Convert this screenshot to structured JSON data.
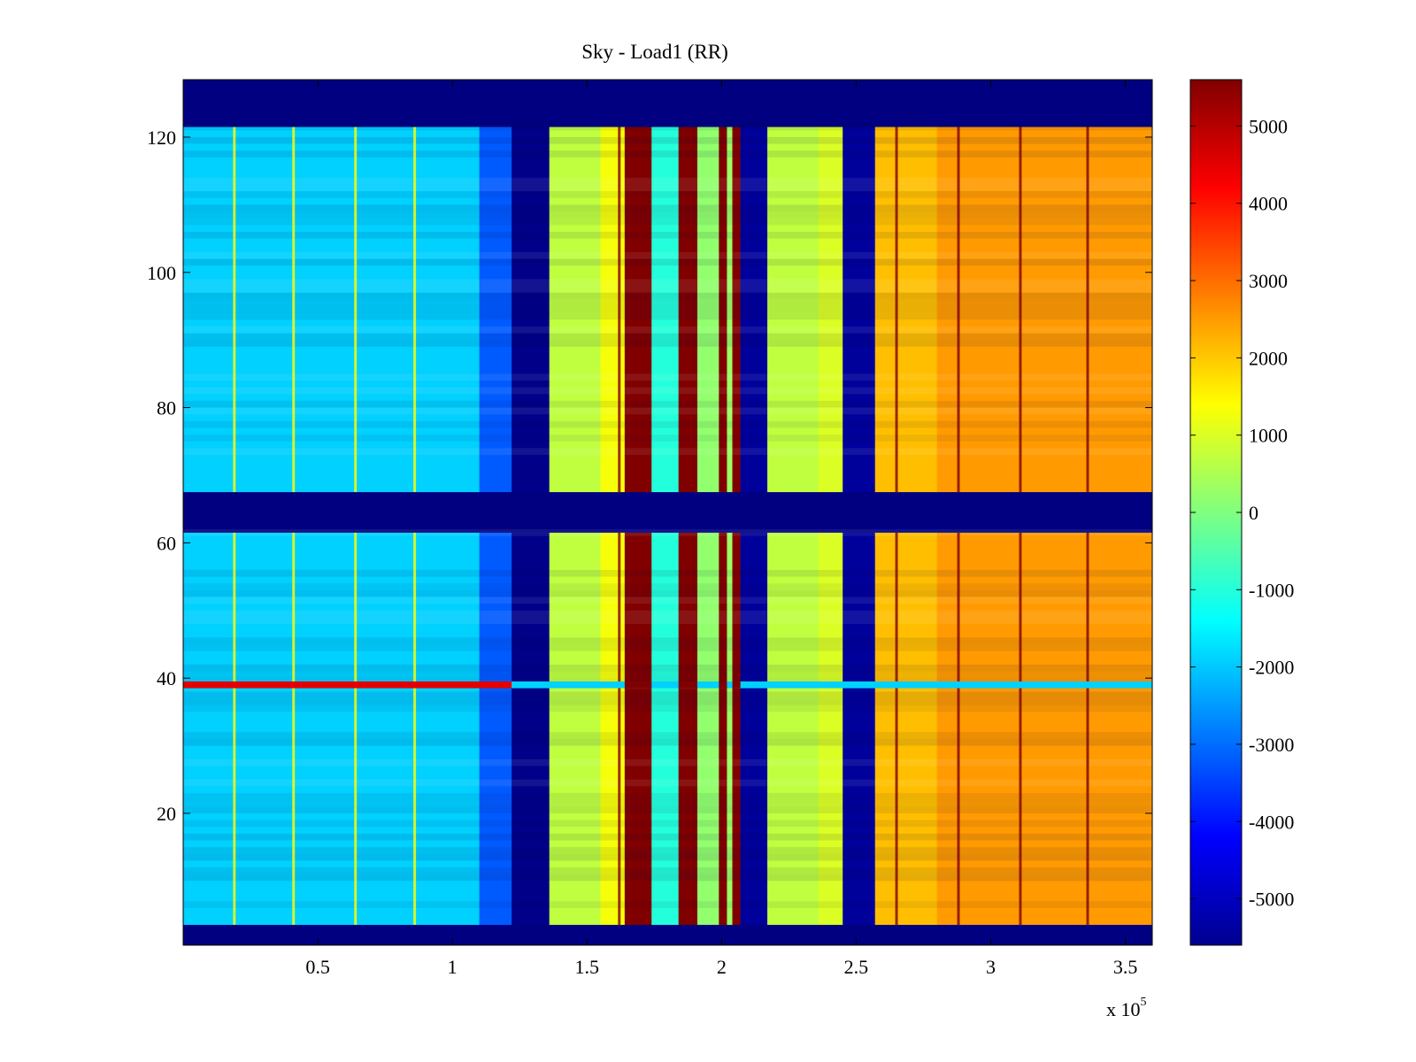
{
  "chart_data": {
    "type": "heatmap",
    "title": "Sky - Load1 (RR)",
    "xlabel": "",
    "ylabel": "",
    "x_exponent_label": "x 10",
    "x_exponent_power": "5",
    "xlim": [
      0,
      3.6
    ],
    "ylim": [
      0.5,
      128.5
    ],
    "x_ticks": [
      0.5,
      1,
      1.5,
      2,
      2.5,
      3,
      3.5
    ],
    "x_tick_labels": [
      "0.5",
      "1",
      "1.5",
      "2",
      "2.5",
      "3",
      "3.5"
    ],
    "y_ticks": [
      20,
      40,
      60,
      80,
      100,
      120
    ],
    "y_tick_labels": [
      "20",
      "40",
      "60",
      "80",
      "100",
      "120"
    ],
    "colormap": "jet",
    "colorbar": {
      "range": [
        -5600,
        5600
      ],
      "ticks": [
        -5000,
        -4000,
        -3000,
        -2000,
        -1000,
        0,
        1000,
        2000,
        3000,
        4000,
        5000
      ],
      "tick_labels": [
        "-5000",
        "-4000",
        "-3000",
        "-2000",
        "-1000",
        "0",
        "1000",
        "2000",
        "3000",
        "4000",
        "5000"
      ]
    },
    "blank_rows": [
      [
        0.5,
        3.5
      ],
      [
        61.5,
        67.5
      ],
      [
        121.5,
        128.5
      ]
    ],
    "anomaly_row": {
      "row": 39,
      "segments": [
        [
          0,
          1.22,
          4500
        ],
        [
          1.22,
          3.6,
          -1900
        ]
      ]
    },
    "column_profile": [
      {
        "x0": 0.0,
        "x1": 1.1,
        "value": -1900
      },
      {
        "x0": 1.1,
        "x1": 1.22,
        "value": -3200
      },
      {
        "x0": 1.22,
        "x1": 1.36,
        "value": -5500
      },
      {
        "x0": 1.36,
        "x1": 1.55,
        "value": 700
      },
      {
        "x0": 1.55,
        "x1": 1.64,
        "value": 1300
      },
      {
        "x0": 1.64,
        "x1": 1.74,
        "value": 5600
      },
      {
        "x0": 1.74,
        "x1": 1.84,
        "value": -1000
      },
      {
        "x0": 1.84,
        "x1": 1.91,
        "value": 5600
      },
      {
        "x0": 1.91,
        "x1": 1.99,
        "value": 200
      },
      {
        "x0": 1.99,
        "x1": 2.02,
        "value": 5600
      },
      {
        "x0": 2.02,
        "x1": 2.04,
        "value": 300
      },
      {
        "x0": 2.04,
        "x1": 2.07,
        "value": 5600
      },
      {
        "x0": 2.07,
        "x1": 2.17,
        "value": -5300
      },
      {
        "x0": 2.17,
        "x1": 2.36,
        "value": 700
      },
      {
        "x0": 2.36,
        "x1": 2.45,
        "value": 1000
      },
      {
        "x0": 2.45,
        "x1": 2.57,
        "value": -5300
      },
      {
        "x0": 2.57,
        "x1": 2.8,
        "value": 2100
      },
      {
        "x0": 2.8,
        "x1": 3.6,
        "value": 2500
      }
    ],
    "stripes": [
      {
        "x": 0.19,
        "value": 1400
      },
      {
        "x": 0.41,
        "value": 1400
      },
      {
        "x": 0.64,
        "value": 1400
      },
      {
        "x": 0.86,
        "value": 1400
      },
      {
        "x": 1.62,
        "value": 5600
      },
      {
        "x": 2.65,
        "value": 5600
      },
      {
        "x": 2.88,
        "value": 5600
      },
      {
        "x": 3.11,
        "value": 5600
      },
      {
        "x": 3.36,
        "value": 5600
      }
    ]
  }
}
